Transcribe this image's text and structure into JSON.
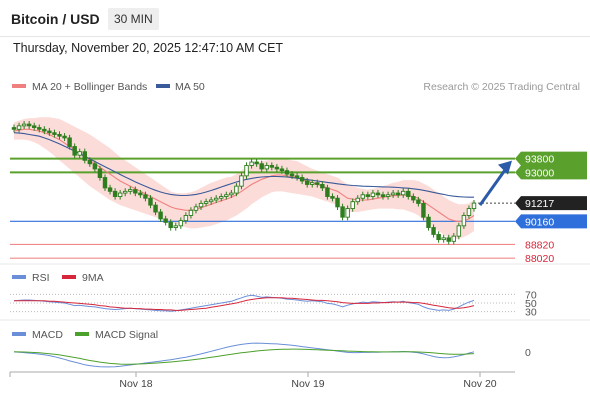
{
  "header": {
    "title": "Bitcoin / USD",
    "timeframe": "30 MIN",
    "datetime": "Thursday, November 20, 2025 12:47:10 AM CET"
  },
  "colors": {
    "candle": "#2e7d1e",
    "ma20": "#f08080",
    "band_fill": "#fbd6d2",
    "ma50": "#3a5a9a",
    "resistance": "#5aa02c",
    "current": "#222222",
    "pivot": "#2f6fdb",
    "support": "#f08a8a",
    "arrow": "#2a5aa8",
    "rsi": "#6a8fd8",
    "rsi_ma": "#d6263a",
    "macd": "#6a8fd8",
    "macd_signal": "#4ca02c"
  },
  "chart_data": {
    "type": "candlestick",
    "legend": {
      "ma20": "MA 20 + Bollinger Bands",
      "ma50": "MA 50",
      "credit": "Research © 2025 Trading Central"
    },
    "x_ticks": [
      "Nov 18",
      "Nov 19",
      "Nov 20"
    ],
    "ylim": [
      87800,
      97200
    ],
    "levels": [
      {
        "value": 93800,
        "label": "93800",
        "kind": "resistance"
      },
      {
        "value": 93000,
        "label": "93000",
        "kind": "resistance"
      },
      {
        "value": 91217,
        "label": "91217",
        "kind": "current"
      },
      {
        "value": 90160,
        "label": "90160",
        "kind": "pivot"
      },
      {
        "value": 88820,
        "label": "88820",
        "kind": "support"
      },
      {
        "value": 88020,
        "label": "88020",
        "kind": "support"
      }
    ],
    "close": [
      95500,
      95700,
      95800,
      95700,
      95600,
      95500,
      95400,
      95300,
      95200,
      95100,
      95000,
      94500,
      94000,
      94200,
      93700,
      93500,
      93200,
      92700,
      92100,
      91900,
      91600,
      91800,
      91900,
      92000,
      91800,
      91700,
      91500,
      91100,
      90700,
      90300,
      90100,
      89800,
      89900,
      90200,
      90500,
      90800,
      91000,
      91200,
      91300,
      91400,
      91500,
      91600,
      91700,
      91800,
      92200,
      92800,
      93400,
      93600,
      93500,
      93200,
      93400,
      93300,
      93200,
      93100,
      92900,
      92800,
      92700,
      92500,
      92300,
      92400,
      92300,
      92100,
      91600,
      91500,
      91000,
      90400,
      90900,
      91300,
      91500,
      91700,
      91600,
      91800,
      91700,
      91600,
      91700,
      91800,
      91700,
      91900,
      91600,
      91400,
      91200,
      90400,
      89800,
      89400,
      89100,
      89200,
      89000,
      89300,
      89900,
      90500,
      90900,
      91217
    ],
    "ma20": [
      95400,
      95450,
      95500,
      95500,
      95450,
      95400,
      95300,
      95200,
      95050,
      94900,
      94700,
      94500,
      94300,
      94100,
      93900,
      93700,
      93500,
      93300,
      93100,
      92900,
      92700,
      92500,
      92350,
      92200,
      92050,
      91900,
      91750,
      91600,
      91450,
      91300,
      91150,
      91000,
      90900,
      90850,
      90800,
      90800,
      90850,
      90950,
      91050,
      91150,
      91250,
      91350,
      91450,
      91550,
      91700,
      91900,
      92100,
      92300,
      92450,
      92600,
      92700,
      92800,
      92850,
      92850,
      92800,
      92750,
      92700,
      92600,
      92500,
      92400,
      92300,
      92200,
      92100,
      92000,
      91900,
      91700,
      91500,
      91450,
      91400,
      91400,
      91400,
      91450,
      91500,
      91550,
      91600,
      91650,
      91650,
      91700,
      91650,
      91600,
      91500,
      91300,
      91100,
      90900,
      90700,
      90500,
      90300,
      90200,
      90150,
      90200,
      90300,
      90500
    ],
    "ma50": [
      95300,
      95280,
      95250,
      95200,
      95150,
      95100,
      95000,
      94900,
      94780,
      94650,
      94520,
      94380,
      94230,
      94080,
      93930,
      93780,
      93630,
      93480,
      93330,
      93180,
      93030,
      92880,
      92730,
      92590,
      92450,
      92320,
      92190,
      92070,
      91960,
      91860,
      91780,
      91720,
      91680,
      91660,
      91660,
      91680,
      91720,
      91780,
      91860,
      91950,
      92050,
      92150,
      92250,
      92350,
      92440,
      92520,
      92590,
      92650,
      92700,
      92730,
      92750,
      92760,
      92760,
      92750,
      92730,
      92700,
      92660,
      92620,
      92580,
      92540,
      92500,
      92460,
      92420,
      92380,
      92340,
      92300,
      92270,
      92240,
      92220,
      92200,
      92190,
      92180,
      92170,
      92160,
      92150,
      92140,
      92120,
      92100,
      92080,
      92050,
      92010,
      91960,
      91900,
      91840,
      91780,
      91720,
      91660,
      91620,
      91590,
      91570,
      91560,
      91560
    ],
    "band_width": [
      500,
      550,
      600,
      650,
      700,
      800,
      900,
      1000,
      1100,
      1200,
      1250,
      1300,
      1350,
      1400,
      1450,
      1500,
      1500,
      1500,
      1500,
      1500,
      1450,
      1400,
      1350,
      1300,
      1250,
      1200,
      1150,
      1100,
      1050,
      1000,
      950,
      900,
      900,
      950,
      1000,
      1050,
      1100,
      1150,
      1200,
      1250,
      1250,
      1250,
      1250,
      1200,
      1200,
      1200,
      1200,
      1150,
      1100,
      1050,
      1000,
      950,
      950,
      950,
      950,
      950,
      950,
      900,
      850,
      800,
      800,
      800,
      800,
      800,
      800,
      800,
      800,
      750,
      700,
      650,
      600,
      600,
      600,
      650,
      700,
      750,
      800,
      850,
      900,
      950,
      1000,
      1050,
      1100,
      1100,
      1100,
      1100,
      1100,
      1050,
      1000,
      950,
      900,
      900
    ],
    "rsi_ticks": [
      "70",
      "50",
      "30"
    ],
    "rsi": [
      55,
      56,
      57,
      57,
      56,
      55,
      54,
      53,
      52,
      51,
      50,
      47,
      44,
      45,
      43,
      42,
      41,
      39,
      37,
      36,
      35,
      36,
      37,
      38,
      37,
      36,
      35,
      34,
      33,
      32,
      32,
      31,
      32,
      34,
      36,
      38,
      40,
      42,
      44,
      46,
      48,
      50,
      52,
      54,
      58,
      62,
      66,
      68,
      66,
      63,
      64,
      63,
      62,
      61,
      59,
      58,
      57,
      55,
      54,
      55,
      54,
      53,
      49,
      48,
      45,
      41,
      45,
      48,
      50,
      52,
      51,
      53,
      52,
      51,
      52,
      53,
      52,
      54,
      51,
      49,
      47,
      41,
      37,
      35,
      33,
      34,
      33,
      36,
      41,
      47,
      52,
      56
    ],
    "rsi_ma": [
      55,
      55,
      55,
      55,
      55,
      55,
      55,
      54,
      54,
      53,
      52,
      51,
      50,
      49,
      48,
      47,
      46,
      44,
      43,
      41,
      40,
      39,
      38,
      38,
      37,
      37,
      36,
      36,
      35,
      35,
      34,
      34,
      33,
      33,
      34,
      35,
      36,
      37,
      38,
      40,
      42,
      44,
      46,
      48,
      50,
      53,
      56,
      58,
      60,
      61,
      62,
      62,
      62,
      62,
      61,
      61,
      60,
      59,
      58,
      57,
      56,
      56,
      55,
      54,
      53,
      51,
      50,
      49,
      49,
      49,
      49,
      50,
      50,
      51,
      51,
      52,
      52,
      52,
      52,
      51,
      51,
      49,
      47,
      45,
      43,
      41,
      39,
      38,
      38,
      39,
      41,
      44
    ],
    "macd_ticks": [
      "0"
    ],
    "macd": [
      -5,
      -20,
      -40,
      -60,
      -80,
      -110,
      -140,
      -180,
      -230,
      -290,
      -350,
      -420,
      -480,
      -540,
      -600,
      -640,
      -670,
      -690,
      -700,
      -700,
      -690,
      -670,
      -640,
      -610,
      -580,
      -550,
      -520,
      -490,
      -460,
      -430,
      -400,
      -370,
      -330,
      -290,
      -250,
      -200,
      -150,
      -100,
      -40,
      20,
      80,
      140,
      200,
      250,
      300,
      340,
      370,
      390,
      400,
      390,
      380,
      370,
      360,
      340,
      320,
      300,
      270,
      240,
      210,
      180,
      150,
      120,
      90,
      60,
      30,
      0,
      -30,
      -40,
      -40,
      -30,
      -30,
      -20,
      -20,
      -10,
      -10,
      0,
      0,
      10,
      0,
      -20,
      -50,
      -100,
      -160,
      -220,
      -260,
      -280,
      -270,
      -240,
      -190,
      -130,
      -60,
      0
    ],
    "macd_signal": [
      0,
      -5,
      -12,
      -22,
      -34,
      -50,
      -68,
      -90,
      -116,
      -147,
      -182,
      -222,
      -264,
      -309,
      -357,
      -402,
      -443,
      -480,
      -512,
      -538,
      -556,
      -568,
      -573,
      -573,
      -569,
      -561,
      -551,
      -538,
      -524,
      -507,
      -490,
      -471,
      -451,
      -429,
      -405,
      -379,
      -351,
      -321,
      -290,
      -257,
      -222,
      -187,
      -151,
      -116,
      -82,
      -50,
      -20,
      8,
      34,
      56,
      75,
      91,
      104,
      113,
      118,
      120,
      120,
      116,
      110,
      101,
      92,
      83,
      72,
      62,
      52,
      42,
      32,
      22,
      14,
      7,
      1,
      -3,
      -6,
      -7,
      -7,
      -6,
      -5,
      -3,
      -2,
      -4,
      -10,
      -20,
      -35,
      -55,
      -75,
      -95,
      -110,
      -118,
      -118,
      -112,
      -100,
      -85
    ]
  }
}
